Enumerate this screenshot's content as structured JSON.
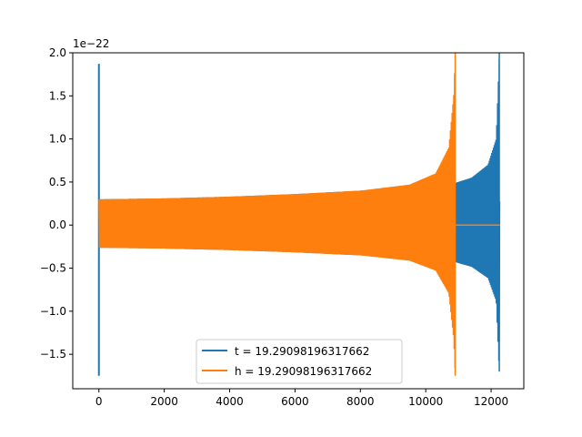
{
  "chart_data": {
    "type": "line",
    "title": "",
    "xlabel": "",
    "ylabel": "",
    "offset_text": "1e−22",
    "xlim": [
      -800,
      13000
    ],
    "ylim": [
      -1.9,
      2.0
    ],
    "xticks": [
      0,
      2000,
      4000,
      6000,
      8000,
      10000,
      12000
    ],
    "xtick_labels": [
      "0",
      "2000",
      "4000",
      "6000",
      "8000",
      "10000",
      "12000"
    ],
    "yticks": [
      -1.5,
      -1.0,
      -0.5,
      0.0,
      0.5,
      1.0,
      1.5,
      2.0
    ],
    "ytick_labels": [
      "−1.5",
      "−1.0",
      "−0.5",
      "0.0",
      "0.5",
      "1.0",
      "1.5",
      "2.0"
    ],
    "grid": false,
    "legend_position": "lower center",
    "series": [
      {
        "name": "t = 19.29098196317662",
        "color": "#1f77b4",
        "description_points": {
          "x": [
            0,
            10,
            100,
            2000,
            4000,
            6000,
            8000,
            10000,
            10900,
            11400,
            11900,
            12150,
            12250,
            12270
          ],
          "y_envelope": [
            1.87,
            0.3,
            0.3,
            0.31,
            0.33,
            0.36,
            0.4,
            0.44,
            0.49,
            0.55,
            0.7,
            1.0,
            2.0,
            0.0
          ]
        },
        "min": -1.75,
        "max": 2.0,
        "spike_x": 0,
        "end_x": 12270
      },
      {
        "name": "h = 19.29098196317662",
        "color": "#ff7f0e",
        "description_points": {
          "x": [
            0,
            100,
            2000,
            4000,
            6000,
            8000,
            9500,
            10300,
            10700,
            10850,
            10900,
            10910,
            12270
          ],
          "y_envelope": [
            0.3,
            0.3,
            0.31,
            0.33,
            0.36,
            0.4,
            0.47,
            0.6,
            0.9,
            1.5,
            2.0,
            0.0,
            0.0
          ]
        },
        "min": -1.75,
        "max": 2.0,
        "merger_x": 10900,
        "end_x": 12270
      }
    ]
  }
}
